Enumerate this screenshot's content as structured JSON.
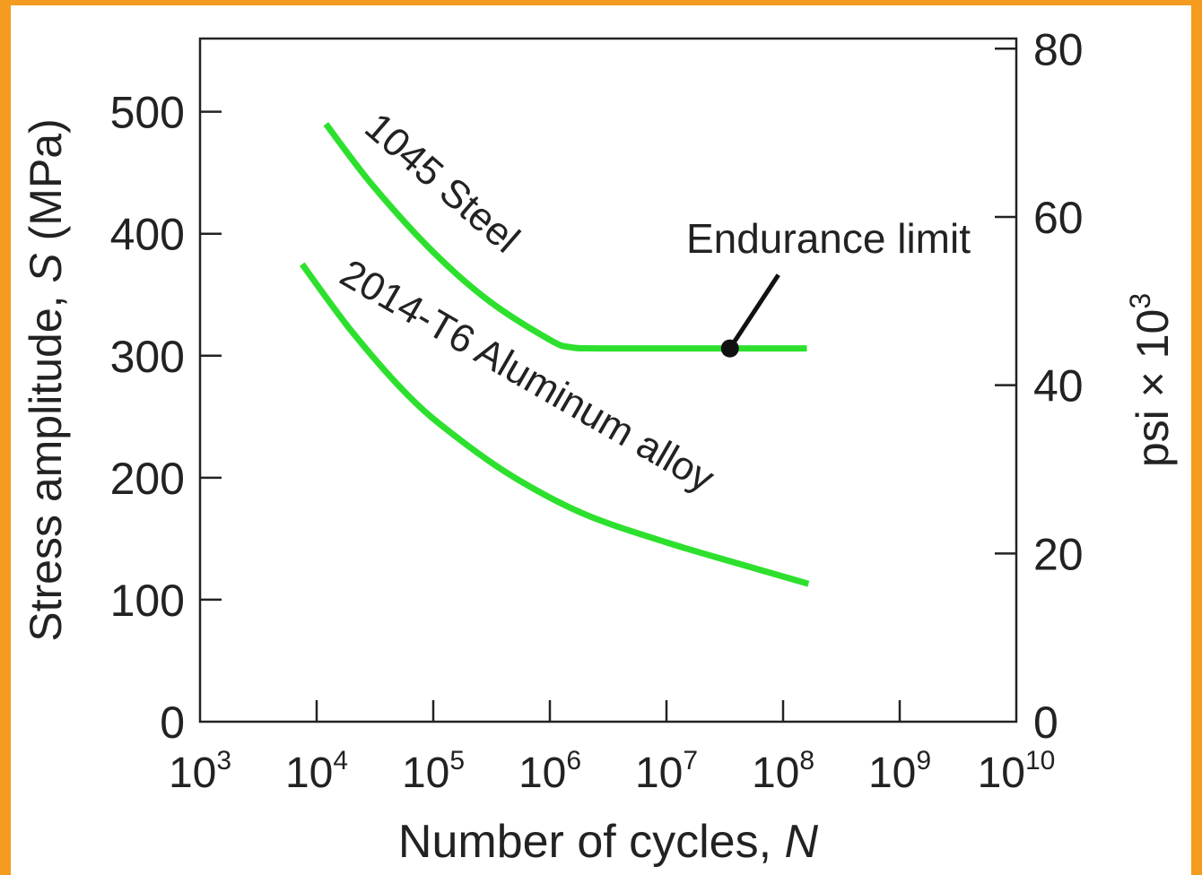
{
  "chart_data": {
    "type": "line",
    "title": "",
    "xlabel": {
      "text": "Number of cycles, ",
      "var": "N"
    },
    "ylabel_left": {
      "text": "Stress amplitude, ",
      "var": "S",
      "unit": " (MPa)"
    },
    "ylabel_right": {
      "text": "psi × 10",
      "exp": "3"
    },
    "x_scale": "log",
    "x_ticks": [
      {
        "base": "10",
        "exp": "3",
        "value": 1000
      },
      {
        "base": "10",
        "exp": "4",
        "value": 10000
      },
      {
        "base": "10",
        "exp": "5",
        "value": 100000
      },
      {
        "base": "10",
        "exp": "6",
        "value": 1000000
      },
      {
        "base": "10",
        "exp": "7",
        "value": 10000000
      },
      {
        "base": "10",
        "exp": "8",
        "value": 100000000
      },
      {
        "base": "10",
        "exp": "9",
        "value": 1000000000
      },
      {
        "base": "10",
        "exp": "10",
        "value": 10000000000
      }
    ],
    "xlim": [
      1000,
      10000000000
    ],
    "y_left_ticks": [
      "0",
      "100",
      "200",
      "300",
      "400",
      "500"
    ],
    "ylim_left": [
      0,
      560
    ],
    "y_right_ticks": [
      "0",
      "20",
      "40",
      "60",
      "80"
    ],
    "ylim_right": [
      0,
      81.2
    ],
    "grid": false,
    "line_color": "#2ee02e",
    "series": [
      {
        "name": "1045 Steel",
        "x": [
          12000,
          30000,
          100000,
          300000,
          1000000,
          1500000,
          2500000,
          10000000,
          40000000,
          160000000
        ],
        "y": [
          490,
          440,
          385,
          345,
          313,
          307,
          306,
          306,
          306,
          306
        ]
      },
      {
        "name": "2014-T6 Aluminum alloy",
        "x": [
          7500,
          20000,
          60000,
          150000,
          500000,
          2000000,
          10000000,
          40000000,
          165000000
        ],
        "y": [
          375,
          320,
          268,
          235,
          200,
          170,
          147,
          130,
          113
        ]
      }
    ],
    "annotations": [
      {
        "text": "Endurance limit",
        "x": 35000000,
        "y": 306
      }
    ]
  }
}
